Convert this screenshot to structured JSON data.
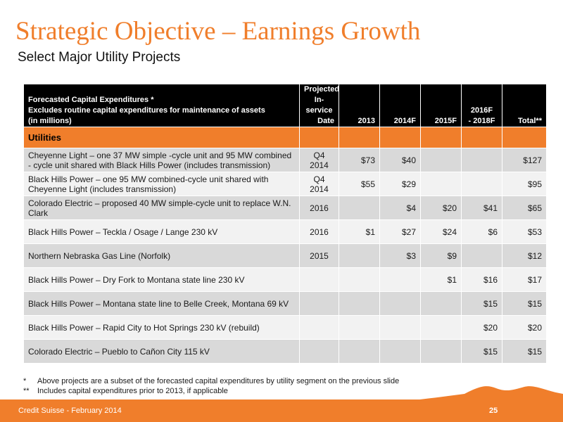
{
  "title": "Strategic Objective – Earnings Growth",
  "subtitle": "Select Major Utility Projects",
  "table": {
    "header_desc": [
      "Forecasted Capital Expenditures *",
      "Excludes routine capital expenditures for maintenance of assets",
      "(in millions)"
    ],
    "header_date": [
      "Projected",
      "In-service",
      "Date"
    ],
    "col_2013": "2013",
    "col_2014": "2014F",
    "col_2015": "2015F",
    "col_2016": [
      "2016F",
      "- 2018F"
    ],
    "col_total": "Total**",
    "section": "Utilities",
    "rows": [
      {
        "desc": "Cheyenne Light – one 37 MW simple -cycle unit and 95 MW combined - cycle unit shared with Black Hills Power (includes transmission)",
        "date": "Q4 2014",
        "y2013": "$73",
        "y2014": "$40",
        "y2015": "",
        "y2016": "",
        "total": "$127"
      },
      {
        "desc": "Black Hills Power – one 95 MW combined-cycle unit shared with Cheyenne Light (includes transmission)",
        "date": "Q4 2014",
        "y2013": "$55",
        "y2014": "$29",
        "y2015": "",
        "y2016": "",
        "total": "$95"
      },
      {
        "desc": "Colorado Electric – proposed 40 MW simple-cycle unit to replace W.N. Clark",
        "date": "2016",
        "y2013": "",
        "y2014": "$4",
        "y2015": "$20",
        "y2016": "$41",
        "total": "$65"
      },
      {
        "desc": "Black Hills Power – Teckla / Osage / Lange 230 kV",
        "date": "2016",
        "y2013": "$1",
        "y2014": "$27",
        "y2015": "$24",
        "y2016": "$6",
        "total": "$53"
      },
      {
        "desc": "Northern Nebraska Gas Line (Norfolk)",
        "date": "2015",
        "y2013": "",
        "y2014": "$3",
        "y2015": "$9",
        "y2016": "",
        "total": "$12"
      },
      {
        "desc": "Black Hills Power – Dry Fork to Montana state line 230 kV",
        "date": "",
        "y2013": "",
        "y2014": "",
        "y2015": "$1",
        "y2016": "$16",
        "total": "$17"
      },
      {
        "desc": "Black Hills Power – Montana state line to Belle Creek, Montana 69 kV",
        "date": "",
        "y2013": "",
        "y2014": "",
        "y2015": "",
        "y2016": "$15",
        "total": "$15"
      },
      {
        "desc": "Black Hills Power – Rapid City to Hot Springs 230 kV (rebuild)",
        "date": "",
        "y2013": "",
        "y2014": "",
        "y2015": "",
        "y2016": "$20",
        "total": "$20"
      },
      {
        "desc": "Colorado Electric – Pueblo to Cañon City 115 kV",
        "date": "",
        "y2013": "",
        "y2014": "",
        "y2015": "",
        "y2016": "$15",
        "total": "$15"
      }
    ]
  },
  "footnotes": [
    {
      "mark": "*",
      "text": "Above projects are a subset of the forecasted capital expenditures by utility segment on the previous slide"
    },
    {
      "mark": "**",
      "text": "Includes capital expenditures prior to 2013, if applicable"
    }
  ],
  "footer": {
    "left": "Credit Suisse - February 2014",
    "page": "25"
  },
  "colors": {
    "accent": "#f07e2b",
    "header": "#000000",
    "row_shade": "#d9d9d9",
    "row_light": "#f2f2f2"
  }
}
